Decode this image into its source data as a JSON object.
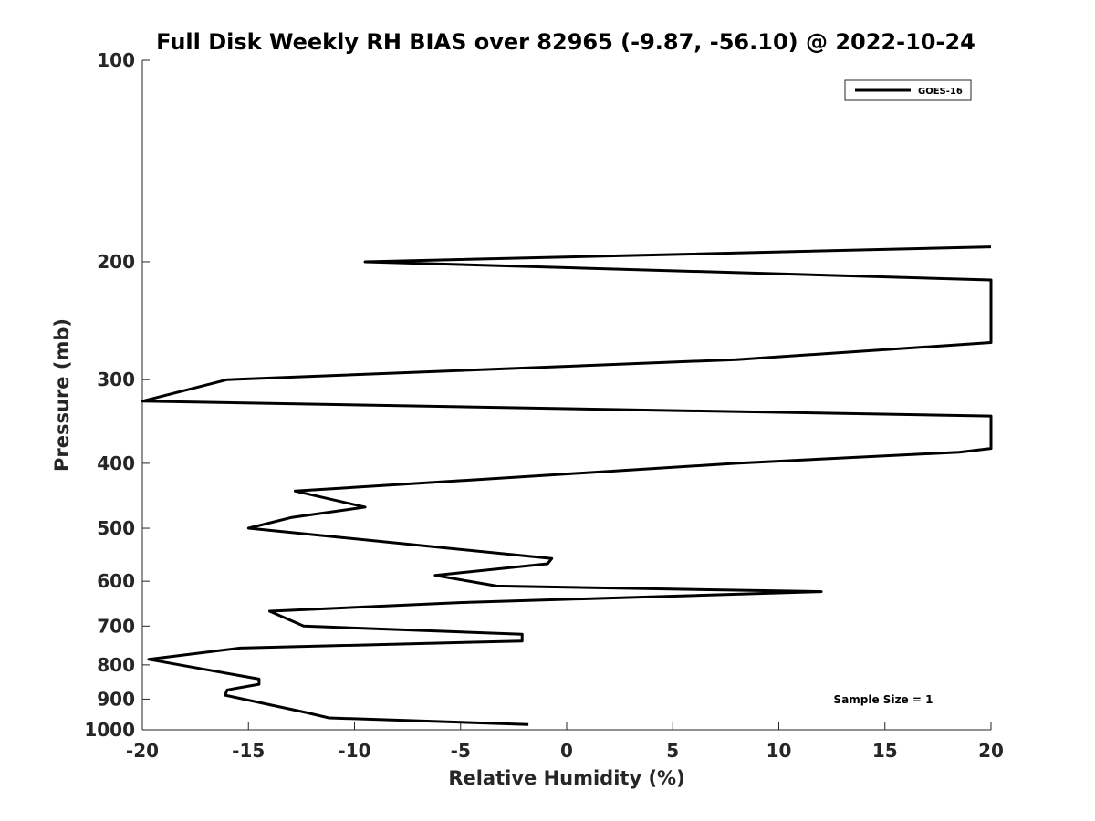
{
  "chart_data": {
    "type": "line",
    "title": "Full Disk Weekly RH BIAS over 82965 (-9.87, -56.10) @ 2022-10-24",
    "xlabel": "Relative Humidity (%)",
    "ylabel": "Pressure (mb)",
    "xlim": [
      -20,
      20
    ],
    "ylim": [
      100,
      1000
    ],
    "y_scale": "log",
    "y_reversed": true,
    "x_ticks": [
      "-20",
      "-15",
      "-10",
      "-5",
      "0",
      "5",
      "10",
      "15",
      "20"
    ],
    "y_ticks": [
      "100",
      "200",
      "300",
      "400",
      "500",
      "600",
      "700",
      "800",
      "900",
      "1000"
    ],
    "grid": false,
    "legend_position": "top-right",
    "series": [
      {
        "name": "GOES-16",
        "color": "#000000",
        "points": [
          [
            20,
            190
          ],
          [
            -9.5,
            200
          ],
          [
            20,
            213
          ],
          [
            20,
            264
          ],
          [
            8,
            280
          ],
          [
            -16,
            300
          ],
          [
            -20,
            323
          ],
          [
            20,
            340
          ],
          [
            20,
            380
          ],
          [
            18.5,
            385
          ],
          [
            8,
            400
          ],
          [
            -12.8,
            440
          ],
          [
            -9.5,
            465
          ],
          [
            -13,
            482
          ],
          [
            -15,
            500
          ],
          [
            -0.7,
            555
          ],
          [
            -0.9,
            565
          ],
          [
            -6.2,
            588
          ],
          [
            -3.3,
            610
          ],
          [
            12,
            622
          ],
          [
            -4.6,
            645
          ],
          [
            -14,
            665
          ],
          [
            -12.4,
            700
          ],
          [
            -2.1,
            720
          ],
          [
            -2.1,
            737
          ],
          [
            -15.4,
            755
          ],
          [
            -19.7,
            785
          ],
          [
            -14.5,
            840
          ],
          [
            -14.5,
            855
          ],
          [
            -16.0,
            872
          ],
          [
            -16.1,
            888
          ],
          [
            -12.3,
            942
          ],
          [
            -11.2,
            960
          ],
          [
            -1.8,
            982
          ]
        ]
      }
    ],
    "annotation": "Sample Size = 1"
  }
}
